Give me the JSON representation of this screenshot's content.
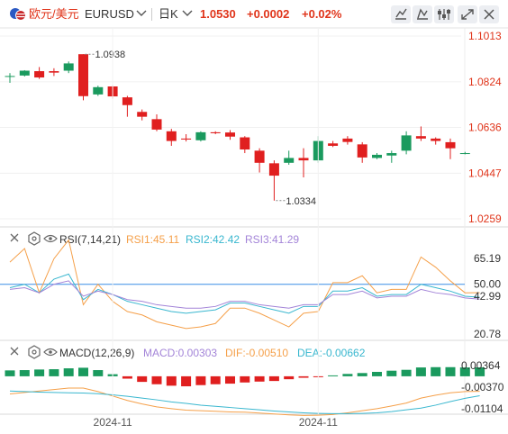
{
  "header": {
    "pair_cn": "欧元/美元",
    "symbol": "EURUSD",
    "period": "日K",
    "price": "1.0530",
    "change": "+0.0002",
    "change_pct": "+0.02%",
    "flag_icon": "us-eu-flag-icon",
    "tool_icons": [
      "draw-line-icon",
      "indicator-icon",
      "settings-sliders-icon",
      "fullscreen-icon",
      "close-icon"
    ]
  },
  "colors": {
    "up": "#e01f1f",
    "down": "#1a9a5e",
    "accent": "#e0351b",
    "rsi1": "#f5a04a",
    "rsi2": "#39b7cf",
    "rsi3": "#a384d8",
    "dif": "#f5a04a",
    "dea": "#39b7cf",
    "ref_line": "#3a8ee6"
  },
  "chart_data": [
    {
      "type": "candlestick",
      "title": "",
      "price_ticks": [
        "1.1013",
        "1.0824",
        "1.0636",
        "1.0447",
        "1.0259"
      ],
      "ylim": [
        1.0259,
        1.1013
      ],
      "high_label": "1.0938",
      "low_label": "1.0334",
      "x_ticks": [
        "2024-11",
        "2024-11"
      ],
      "x_tick_index": [
        7,
        21
      ],
      "candles": [
        {
          "o": 1.0848,
          "h": 1.086,
          "l": 1.082,
          "c": 1.0848
        },
        {
          "o": 1.085,
          "h": 1.0872,
          "l": 1.0846,
          "c": 1.087
        },
        {
          "o": 1.0868,
          "h": 1.0885,
          "l": 1.0836,
          "c": 1.0842
        },
        {
          "o": 1.0868,
          "h": 1.088,
          "l": 1.0848,
          "c": 1.0862
        },
        {
          "o": 1.087,
          "h": 1.0908,
          "l": 1.086,
          "c": 1.09
        },
        {
          "o": 1.0938,
          "h": 1.0938,
          "l": 1.0748,
          "c": 1.0765
        },
        {
          "o": 1.0772,
          "h": 1.0808,
          "l": 1.0766,
          "c": 1.0802
        },
        {
          "o": 1.0805,
          "h": 1.081,
          "l": 1.0754,
          "c": 1.0764
        },
        {
          "o": 1.076,
          "h": 1.0766,
          "l": 1.068,
          "c": 1.0728
        },
        {
          "o": 1.07,
          "h": 1.071,
          "l": 1.0665,
          "c": 1.068
        },
        {
          "o": 1.067,
          "h": 1.069,
          "l": 1.062,
          "c": 1.0627
        },
        {
          "o": 1.062,
          "h": 1.063,
          "l": 1.056,
          "c": 1.058
        },
        {
          "o": 1.059,
          "h": 1.0608,
          "l": 1.0578,
          "c": 1.0586
        },
        {
          "o": 1.0583,
          "h": 1.062,
          "l": 1.0578,
          "c": 1.0616
        },
        {
          "o": 1.0616,
          "h": 1.062,
          "l": 1.0608,
          "c": 1.0612
        },
        {
          "o": 1.0615,
          "h": 1.0625,
          "l": 1.0585,
          "c": 1.0598
        },
        {
          "o": 1.0595,
          "h": 1.06,
          "l": 1.053,
          "c": 1.0545
        },
        {
          "o": 1.054,
          "h": 1.055,
          "l": 1.045,
          "c": 1.049
        },
        {
          "o": 1.0488,
          "h": 1.05,
          "l": 1.0334,
          "c": 1.0437
        },
        {
          "o": 1.049,
          "h": 1.054,
          "l": 1.0482,
          "c": 1.051
        },
        {
          "o": 1.051,
          "h": 1.055,
          "l": 1.043,
          "c": 1.05
        },
        {
          "o": 1.05,
          "h": 1.06,
          "l": 1.049,
          "c": 1.058
        },
        {
          "o": 1.057,
          "h": 1.058,
          "l": 1.0555,
          "c": 1.056
        },
        {
          "o": 1.059,
          "h": 1.06,
          "l": 1.0565,
          "c": 1.0576
        },
        {
          "o": 1.0566,
          "h": 1.0575,
          "l": 1.049,
          "c": 1.0512
        },
        {
          "o": 1.051,
          "h": 1.053,
          "l": 1.0505,
          "c": 1.0523
        },
        {
          "o": 1.052,
          "h": 1.054,
          "l": 1.049,
          "c": 1.053
        },
        {
          "o": 1.054,
          "h": 1.062,
          "l": 1.0525,
          "c": 1.0603
        },
        {
          "o": 1.06,
          "h": 1.064,
          "l": 1.058,
          "c": 1.059
        },
        {
          "o": 1.059,
          "h": 1.0595,
          "l": 1.0565,
          "c": 1.058
        },
        {
          "o": 1.0575,
          "h": 1.059,
          "l": 1.0505,
          "c": 1.055
        },
        {
          "o": 1.0528,
          "h": 1.0535,
          "l": 1.0525,
          "c": 1.053
        }
      ]
    },
    {
      "type": "line",
      "title": "RSI(7,14,21)",
      "y_ticks": [
        65.19,
        50.0,
        42.99,
        20.78
      ],
      "y_tick_labels": [
        "65.19",
        "50.00",
        "42.99",
        "20.78"
      ],
      "ylim": [
        20.78,
        65.19
      ],
      "ref_level": 50.0,
      "series": [
        {
          "name": "RSI1",
          "label": "RSI1:45.11",
          "values": [
            63,
            71,
            45,
            65,
            76,
            38,
            50,
            40,
            34,
            32,
            28,
            26,
            24,
            25,
            27,
            36,
            36,
            33,
            29,
            25,
            33,
            34,
            51,
            51,
            55,
            45,
            47,
            47,
            66,
            60,
            52,
            45,
            45.11
          ]
        },
        {
          "name": "RSI2",
          "label": "RSI2:42.42",
          "values": [
            48,
            50,
            45,
            53,
            56,
            41,
            47,
            44,
            40,
            38,
            36,
            34,
            33,
            34,
            35,
            39,
            39,
            37,
            35,
            33,
            37,
            37,
            46,
            46,
            48,
            43,
            44,
            44,
            50,
            48,
            46,
            43,
            42.42
          ]
        },
        {
          "name": "RSI3",
          "label": "RSI3:41.29",
          "values": [
            47,
            48,
            45,
            50,
            52,
            43,
            46,
            44,
            41,
            40,
            38,
            37,
            36,
            36,
            37,
            40,
            40,
            38,
            37,
            36,
            38,
            38,
            44,
            44,
            46,
            42,
            43,
            43,
            47,
            45,
            44,
            42,
            41.29
          ]
        }
      ]
    },
    {
      "type": "bar+line",
      "title": "MACD(12,26,9)",
      "y_ticks": [
        0.00364,
        -0.0037,
        -0.01104
      ],
      "y_tick_labels": [
        "0.00364",
        "-0.00370",
        "-0.01104"
      ],
      "ylim": [
        -0.01104,
        0.00364
      ],
      "series": [
        {
          "name": "MACD",
          "label": "MACD:0.00303",
          "values": [
            0.002,
            0.0021,
            0.0023,
            0.0024,
            0.0027,
            0.0029,
            0.0021,
            0.0007,
            -0.0008,
            -0.0019,
            -0.0027,
            -0.0032,
            -0.0034,
            -0.003,
            -0.0027,
            -0.0025,
            -0.0021,
            -0.0018,
            -0.0016,
            -0.001,
            -0.0005,
            -0.0002,
            0.0003,
            0.0008,
            0.0011,
            0.0015,
            0.0019,
            0.0022,
            0.003,
            0.0031,
            0.0031,
            0.003,
            0.00303
          ]
        },
        {
          "name": "DIF",
          "label": "DIF:-0.00510",
          "values": [
            -0.006,
            -0.0055,
            -0.005,
            -0.0045,
            -0.004,
            -0.004,
            -0.0052,
            -0.0067,
            -0.0082,
            -0.0094,
            -0.0104,
            -0.011,
            -0.0115,
            -0.0117,
            -0.0119,
            -0.0121,
            -0.0122,
            -0.0125,
            -0.0128,
            -0.0131,
            -0.0133,
            -0.0132,
            -0.013,
            -0.0124,
            -0.0117,
            -0.011,
            -0.0101,
            -0.0091,
            -0.0074,
            -0.0064,
            -0.0056,
            -0.0052,
            -0.0051
          ]
        },
        {
          "name": "DEA",
          "label": "DEA:-0.00662",
          "values": [
            -0.005,
            -0.0052,
            -0.0054,
            -0.0055,
            -0.0056,
            -0.0057,
            -0.0059,
            -0.0063,
            -0.0068,
            -0.0074,
            -0.008,
            -0.0087,
            -0.0092,
            -0.0098,
            -0.0102,
            -0.0106,
            -0.011,
            -0.0114,
            -0.0118,
            -0.0121,
            -0.0124,
            -0.0126,
            -0.0127,
            -0.0127,
            -0.0126,
            -0.0124,
            -0.012,
            -0.0114,
            -0.0108,
            -0.0098,
            -0.0086,
            -0.0075,
            -0.00662
          ]
        }
      ]
    }
  ]
}
